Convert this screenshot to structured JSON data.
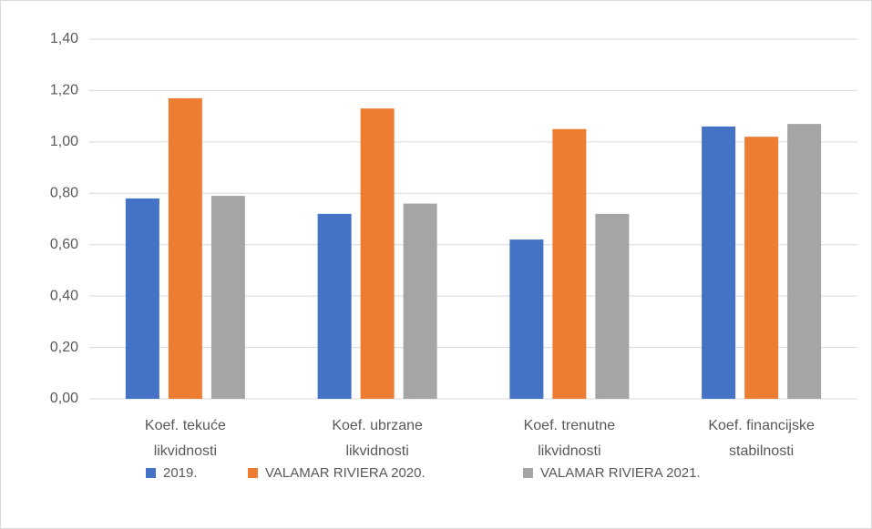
{
  "chart_data": {
    "type": "bar",
    "categories": [
      "Koef. tekuće likvidnosti",
      "Koef. ubrzane likvidnosti",
      "Koef. trenutne likvidnosti",
      "Koef. financijske stabilnosti"
    ],
    "series": [
      {
        "name": "2019.",
        "color": "#4472c4",
        "values": [
          0.78,
          0.72,
          0.62,
          1.06
        ]
      },
      {
        "name": "VALAMAR RIVIERA 2020.",
        "color": "#ed7d31",
        "values": [
          1.17,
          1.13,
          1.05,
          1.02
        ]
      },
      {
        "name": "VALAMAR RIVIERA 2021.",
        "color": "#a5a5a5",
        "values": [
          0.79,
          0.76,
          0.72,
          1.07
        ]
      }
    ],
    "ylim": [
      0,
      1.4
    ],
    "yticks": [
      {
        "value": 0,
        "label": "0,00"
      },
      {
        "value": 0.2,
        "label": "0,20"
      },
      {
        "value": 0.4,
        "label": "0,40"
      },
      {
        "value": 0.6,
        "label": "0,60"
      },
      {
        "value": 0.8,
        "label": "0,80"
      },
      {
        "value": 1.0,
        "label": "1,00"
      },
      {
        "value": 1.2,
        "label": "1,20"
      },
      {
        "value": 1.4,
        "label": "1,40"
      }
    ],
    "grid": true,
    "legend": "bottom"
  }
}
